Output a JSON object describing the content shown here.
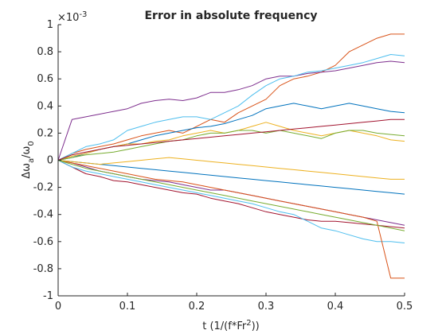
{
  "chart_data": {
    "type": "line",
    "title": "Error in absolute frequency",
    "xlabel": "t (1/(f*Fr^2))",
    "ylabel": "Δω_a/ω_0",
    "y_multiplier_label": "×10^-3",
    "xlim": [
      0,
      0.5
    ],
    "ylim": [
      -1,
      1
    ],
    "x_ticks": [
      0,
      0.1,
      0.2,
      0.3,
      0.4,
      0.5
    ],
    "x_tick_labels": [
      "0",
      "0.1",
      "0.2",
      "0.3",
      "0.4",
      "0.5"
    ],
    "y_ticks": [
      1,
      0.8,
      0.6,
      0.4,
      0.2,
      0,
      -0.2,
      -0.4,
      -0.6,
      -0.8,
      -1
    ],
    "y_tick_labels": [
      "1",
      "0.8",
      "0.6",
      "0.4",
      "0.2",
      "0",
      "-0.2",
      "-0.4",
      "-0.6",
      "-0.8",
      "-1"
    ],
    "grid": false,
    "x": [
      0,
      0.02,
      0.04,
      0.06,
      0.08,
      0.1,
      0.12,
      0.14,
      0.16,
      0.18,
      0.2,
      0.22,
      0.24,
      0.26,
      0.28,
      0.3,
      0.32,
      0.34,
      0.36,
      0.38,
      0.4,
      0.42,
      0.44,
      0.46,
      0.48,
      0.5
    ],
    "series": [
      {
        "color": "#D95319",
        "values": [
          0,
          0.05,
          0.08,
          0.1,
          0.12,
          0.15,
          0.18,
          0.2,
          0.22,
          0.2,
          0.25,
          0.3,
          0.28,
          0.35,
          0.4,
          0.45,
          0.55,
          0.6,
          0.62,
          0.65,
          0.7,
          0.8,
          0.85,
          0.9,
          0.93,
          0.93
        ]
      },
      {
        "color": "#7E2F8E",
        "values": [
          0,
          0.3,
          0.32,
          0.34,
          0.36,
          0.38,
          0.42,
          0.44,
          0.45,
          0.44,
          0.46,
          0.5,
          0.5,
          0.52,
          0.55,
          0.6,
          0.62,
          0.62,
          0.64,
          0.65,
          0.66,
          0.68,
          0.7,
          0.72,
          0.73,
          0.72
        ]
      },
      {
        "color": "#4DBEEE",
        "values": [
          0,
          0.05,
          0.1,
          0.12,
          0.15,
          0.22,
          0.25,
          0.28,
          0.3,
          0.32,
          0.32,
          0.3,
          0.35,
          0.4,
          0.48,
          0.55,
          0.6,
          0.62,
          0.65,
          0.66,
          0.68,
          0.7,
          0.72,
          0.75,
          0.78,
          0.77
        ]
      },
      {
        "color": "#0072BD",
        "values": [
          0,
          0.02,
          0.05,
          0.08,
          0.1,
          0.12,
          0.15,
          0.18,
          0.2,
          0.22,
          0.24,
          0.25,
          0.27,
          0.3,
          0.33,
          0.38,
          0.4,
          0.42,
          0.4,
          0.38,
          0.4,
          0.42,
          0.4,
          0.38,
          0.36,
          0.35
        ]
      },
      {
        "color": "#EDB120",
        "values": [
          0,
          0.03,
          0.05,
          0.08,
          0.1,
          0.12,
          0.12,
          0.14,
          0.15,
          0.18,
          0.2,
          0.22,
          0.2,
          0.22,
          0.25,
          0.28,
          0.25,
          0.22,
          0.2,
          0.18,
          0.2,
          0.22,
          0.2,
          0.18,
          0.15,
          0.14
        ]
      },
      {
        "color": "#77AC30",
        "values": [
          0,
          0.02,
          0.04,
          0.05,
          0.06,
          0.08,
          0.1,
          0.12,
          0.14,
          0.15,
          0.18,
          0.2,
          0.2,
          0.22,
          0.22,
          0.2,
          0.22,
          0.2,
          0.18,
          0.16,
          0.2,
          0.22,
          0.22,
          0.2,
          0.19,
          0.18
        ]
      },
      {
        "color": "#A2142F",
        "values": [
          0,
          -0.05,
          -0.1,
          -0.12,
          -0.15,
          -0.16,
          -0.18,
          -0.2,
          -0.22,
          -0.24,
          -0.25,
          -0.28,
          -0.3,
          -0.32,
          -0.35,
          -0.38,
          -0.4,
          -0.42,
          -0.44,
          -0.45,
          -0.45,
          -0.46,
          -0.47,
          -0.48,
          -0.49,
          -0.5
        ]
      },
      {
        "color": "#7E2F8E",
        "values": [
          0,
          -0.02,
          -0.05,
          -0.08,
          -0.1,
          -0.12,
          -0.14,
          -0.15,
          -0.16,
          -0.18,
          -0.2,
          -0.22,
          -0.22,
          -0.24,
          -0.26,
          -0.28,
          -0.3,
          -0.32,
          -0.34,
          -0.36,
          -0.38,
          -0.4,
          -0.42,
          -0.44,
          -0.46,
          -0.48
        ]
      },
      {
        "color": "#4DBEEE",
        "values": [
          0,
          -0.05,
          -0.08,
          -0.1,
          -0.12,
          -0.14,
          -0.16,
          -0.18,
          -0.2,
          -0.22,
          -0.24,
          -0.26,
          -0.28,
          -0.3,
          -0.32,
          -0.35,
          -0.38,
          -0.4,
          -0.45,
          -0.5,
          -0.52,
          -0.55,
          -0.58,
          -0.6,
          -0.6,
          -0.61
        ]
      },
      {
        "color": "#D95319",
        "values": [
          0,
          -0.02,
          -0.04,
          -0.06,
          -0.08,
          -0.1,
          -0.12,
          -0.14,
          -0.15,
          -0.16,
          -0.18,
          -0.2,
          -0.22,
          -0.24,
          -0.26,
          -0.28,
          -0.3,
          -0.32,
          -0.34,
          -0.36,
          -0.38,
          -0.4,
          -0.42,
          -0.45,
          -0.87,
          -0.87
        ]
      },
      {
        "color": "#0072BD",
        "values": [
          0,
          -0.01,
          -0.02,
          -0.03,
          -0.04,
          -0.05,
          -0.06,
          -0.07,
          -0.08,
          -0.09,
          -0.1,
          -0.11,
          -0.12,
          -0.13,
          -0.14,
          -0.15,
          -0.16,
          -0.17,
          -0.18,
          -0.19,
          -0.2,
          -0.21,
          -0.22,
          -0.23,
          -0.24,
          -0.25
        ]
      },
      {
        "color": "#EDB120",
        "values": [
          0,
          -0.01,
          -0.02,
          -0.03,
          -0.02,
          -0.01,
          0,
          0.01,
          0.02,
          0.01,
          0,
          -0.01,
          -0.02,
          -0.03,
          -0.04,
          -0.05,
          -0.06,
          -0.07,
          -0.08,
          -0.09,
          -0.1,
          -0.11,
          -0.12,
          -0.13,
          -0.14,
          -0.14
        ]
      },
      {
        "color": "#77AC30",
        "values": [
          0,
          -0.03,
          -0.06,
          -0.08,
          -0.1,
          -0.12,
          -0.14,
          -0.16,
          -0.18,
          -0.2,
          -0.22,
          -0.24,
          -0.26,
          -0.28,
          -0.3,
          -0.32,
          -0.34,
          -0.36,
          -0.38,
          -0.4,
          -0.42,
          -0.44,
          -0.46,
          -0.48,
          -0.5,
          -0.52
        ]
      },
      {
        "color": "#A2142F",
        "values": [
          0,
          0.04,
          0.06,
          0.08,
          0.1,
          0.11,
          0.12,
          0.13,
          0.14,
          0.15,
          0.16,
          0.17,
          0.18,
          0.19,
          0.2,
          0.21,
          0.22,
          0.23,
          0.24,
          0.25,
          0.26,
          0.27,
          0.28,
          0.29,
          0.3,
          0.3
        ]
      }
    ]
  }
}
